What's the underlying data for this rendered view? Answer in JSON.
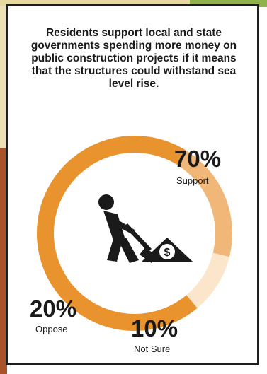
{
  "headline": "Residents support local and state governments spending more money on public construction projects if it means that the structures could withstand sea level rise.",
  "icon": "construction-worker-shoveling-money-icon",
  "icon_glyph": "$",
  "colors": {
    "support": "#e8932e",
    "oppose": "#f1b778",
    "not_sure": "#fbe6cc",
    "text": "#1a1a1a"
  },
  "chart_data": {
    "type": "pie",
    "style": "donut",
    "categories": [
      "Support",
      "Oppose",
      "Not Sure"
    ],
    "values": [
      70,
      20,
      10
    ],
    "value_labels": [
      "70%",
      "20%",
      "10%"
    ],
    "title": "Residents support local and state governments spending more money on public construction projects if it means that the structures could withstand sea level rise."
  }
}
